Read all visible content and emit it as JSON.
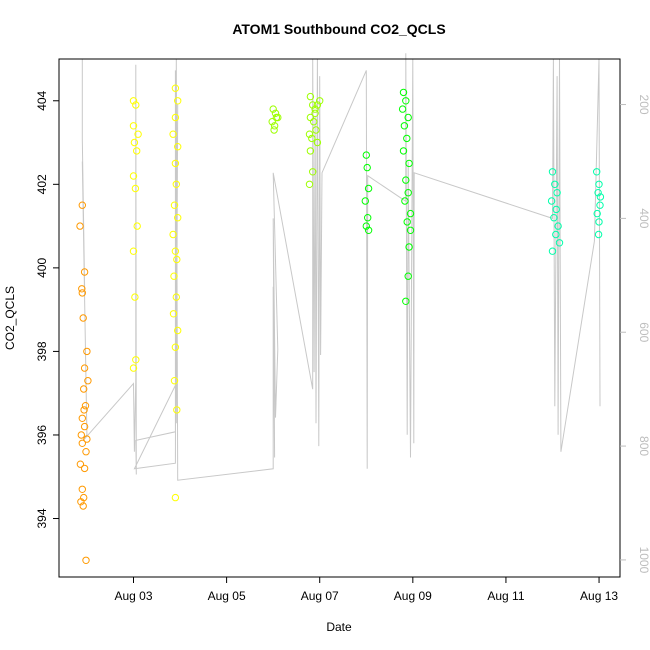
{
  "chart_data": {
    "type": "scatter",
    "title": "ATOM1 Southbound CO2_QCLS",
    "xlabel": "Date",
    "ylabel": "CO2_QCLS",
    "x_ticks": [
      "Aug 03",
      "Aug 05",
      "Aug 07",
      "Aug 09",
      "Aug 11",
      "Aug 13"
    ],
    "x_tick_days": [
      3,
      5,
      7,
      9,
      11,
      13
    ],
    "xlim": [
      1.4,
      13.45
    ],
    "y_ticks": [
      394,
      396,
      398,
      400,
      402,
      404
    ],
    "ylim": [
      392.6,
      405.0
    ],
    "secondary_axis": {
      "label_color": "#bdbdbd",
      "ticks": [
        200,
        400,
        600,
        800,
        1000
      ],
      "range": [
        120,
        1030
      ],
      "inverted": true,
      "profile_color": "#c8c8c8"
    },
    "grid": false,
    "legend": "none",
    "series": [
      {
        "color": "#ff9900",
        "points": [
          [
            1.9,
            401.5
          ],
          [
            1.85,
            401.0
          ],
          [
            1.95,
            399.9
          ],
          [
            1.9,
            399.4
          ],
          [
            1.92,
            398.8
          ],
          [
            2.0,
            398.0
          ],
          [
            1.95,
            397.6
          ],
          [
            2.02,
            397.3
          ],
          [
            1.93,
            397.1
          ],
          [
            1.97,
            396.7
          ],
          [
            1.9,
            396.4
          ],
          [
            1.95,
            396.2
          ],
          [
            1.88,
            396.0
          ],
          [
            2.0,
            395.9
          ],
          [
            1.9,
            395.8
          ],
          [
            1.98,
            395.6
          ],
          [
            1.86,
            395.3
          ],
          [
            1.95,
            395.2
          ],
          [
            1.9,
            394.7
          ],
          [
            1.93,
            394.5
          ],
          [
            1.87,
            394.4
          ],
          [
            1.92,
            394.3
          ],
          [
            1.98,
            393.0
          ],
          [
            1.94,
            396.6
          ],
          [
            1.89,
            399.5
          ]
        ]
      },
      {
        "color": "#ffff00",
        "points": [
          [
            3.0,
            404.0
          ],
          [
            3.05,
            403.9
          ],
          [
            3.0,
            403.4
          ],
          [
            3.1,
            403.2
          ],
          [
            3.02,
            403.0
          ],
          [
            3.07,
            402.8
          ],
          [
            3.0,
            402.2
          ],
          [
            3.04,
            401.9
          ],
          [
            3.08,
            401.0
          ],
          [
            3.0,
            400.4
          ],
          [
            3.03,
            399.3
          ],
          [
            3.05,
            397.8
          ],
          [
            3.0,
            397.6
          ],
          [
            3.9,
            404.3
          ],
          [
            3.95,
            404.0
          ],
          [
            3.9,
            403.6
          ],
          [
            3.85,
            403.2
          ],
          [
            3.95,
            402.9
          ],
          [
            3.9,
            402.5
          ],
          [
            3.92,
            402.0
          ],
          [
            3.88,
            401.5
          ],
          [
            3.95,
            401.2
          ],
          [
            3.85,
            400.8
          ],
          [
            3.9,
            400.4
          ],
          [
            3.93,
            400.2
          ],
          [
            3.87,
            399.8
          ],
          [
            3.92,
            399.3
          ],
          [
            3.86,
            398.9
          ],
          [
            3.95,
            398.5
          ],
          [
            3.9,
            398.1
          ],
          [
            3.88,
            397.3
          ],
          [
            3.93,
            396.6
          ],
          [
            3.9,
            394.5
          ]
        ]
      },
      {
        "color": "#9dff00",
        "points": [
          [
            6.0,
            403.8
          ],
          [
            6.05,
            403.7
          ],
          [
            6.1,
            403.6
          ],
          [
            5.98,
            403.5
          ],
          [
            6.03,
            403.4
          ],
          [
            6.07,
            403.6
          ],
          [
            6.02,
            403.3
          ],
          [
            6.8,
            404.1
          ],
          [
            6.85,
            403.9
          ],
          [
            6.9,
            403.8
          ],
          [
            6.8,
            403.6
          ],
          [
            6.87,
            403.5
          ],
          [
            6.92,
            403.3
          ],
          [
            6.78,
            403.2
          ],
          [
            6.83,
            403.1
          ],
          [
            6.95,
            403.0
          ],
          [
            6.8,
            402.8
          ],
          [
            6.85,
            402.3
          ],
          [
            6.78,
            402.0
          ],
          [
            6.9,
            403.7
          ],
          [
            6.95,
            403.9
          ],
          [
            7.0,
            404.0
          ]
        ]
      },
      {
        "color": "#00ff00",
        "points": [
          [
            8.0,
            402.7
          ],
          [
            8.02,
            402.4
          ],
          [
            8.05,
            401.9
          ],
          [
            7.98,
            401.6
          ],
          [
            8.03,
            401.2
          ],
          [
            8.0,
            401.0
          ],
          [
            8.05,
            400.9
          ],
          [
            8.8,
            404.2
          ],
          [
            8.85,
            404.0
          ],
          [
            8.78,
            403.8
          ],
          [
            8.9,
            403.6
          ],
          [
            8.82,
            403.4
          ],
          [
            8.87,
            403.1
          ],
          [
            8.8,
            402.8
          ],
          [
            8.92,
            402.5
          ],
          [
            8.85,
            402.1
          ],
          [
            8.9,
            401.8
          ],
          [
            8.83,
            401.6
          ],
          [
            8.95,
            401.3
          ],
          [
            8.88,
            401.1
          ],
          [
            8.92,
            400.5
          ],
          [
            8.9,
            399.8
          ],
          [
            8.85,
            399.2
          ],
          [
            8.95,
            400.9
          ]
        ]
      },
      {
        "color": "#00ffaa",
        "points": [
          [
            12.0,
            402.3
          ],
          [
            12.05,
            402.0
          ],
          [
            12.1,
            401.8
          ],
          [
            11.98,
            401.6
          ],
          [
            12.08,
            401.4
          ],
          [
            12.03,
            401.2
          ],
          [
            12.12,
            401.0
          ],
          [
            12.07,
            400.8
          ],
          [
            12.15,
            400.6
          ],
          [
            12.0,
            400.4
          ],
          [
            12.95,
            402.3
          ],
          [
            13.0,
            402.0
          ],
          [
            12.98,
            401.8
          ],
          [
            13.02,
            401.5
          ],
          [
            12.96,
            401.3
          ],
          [
            13.0,
            401.1
          ],
          [
            12.99,
            400.8
          ],
          [
            13.03,
            401.7
          ]
        ]
      }
    ]
  }
}
